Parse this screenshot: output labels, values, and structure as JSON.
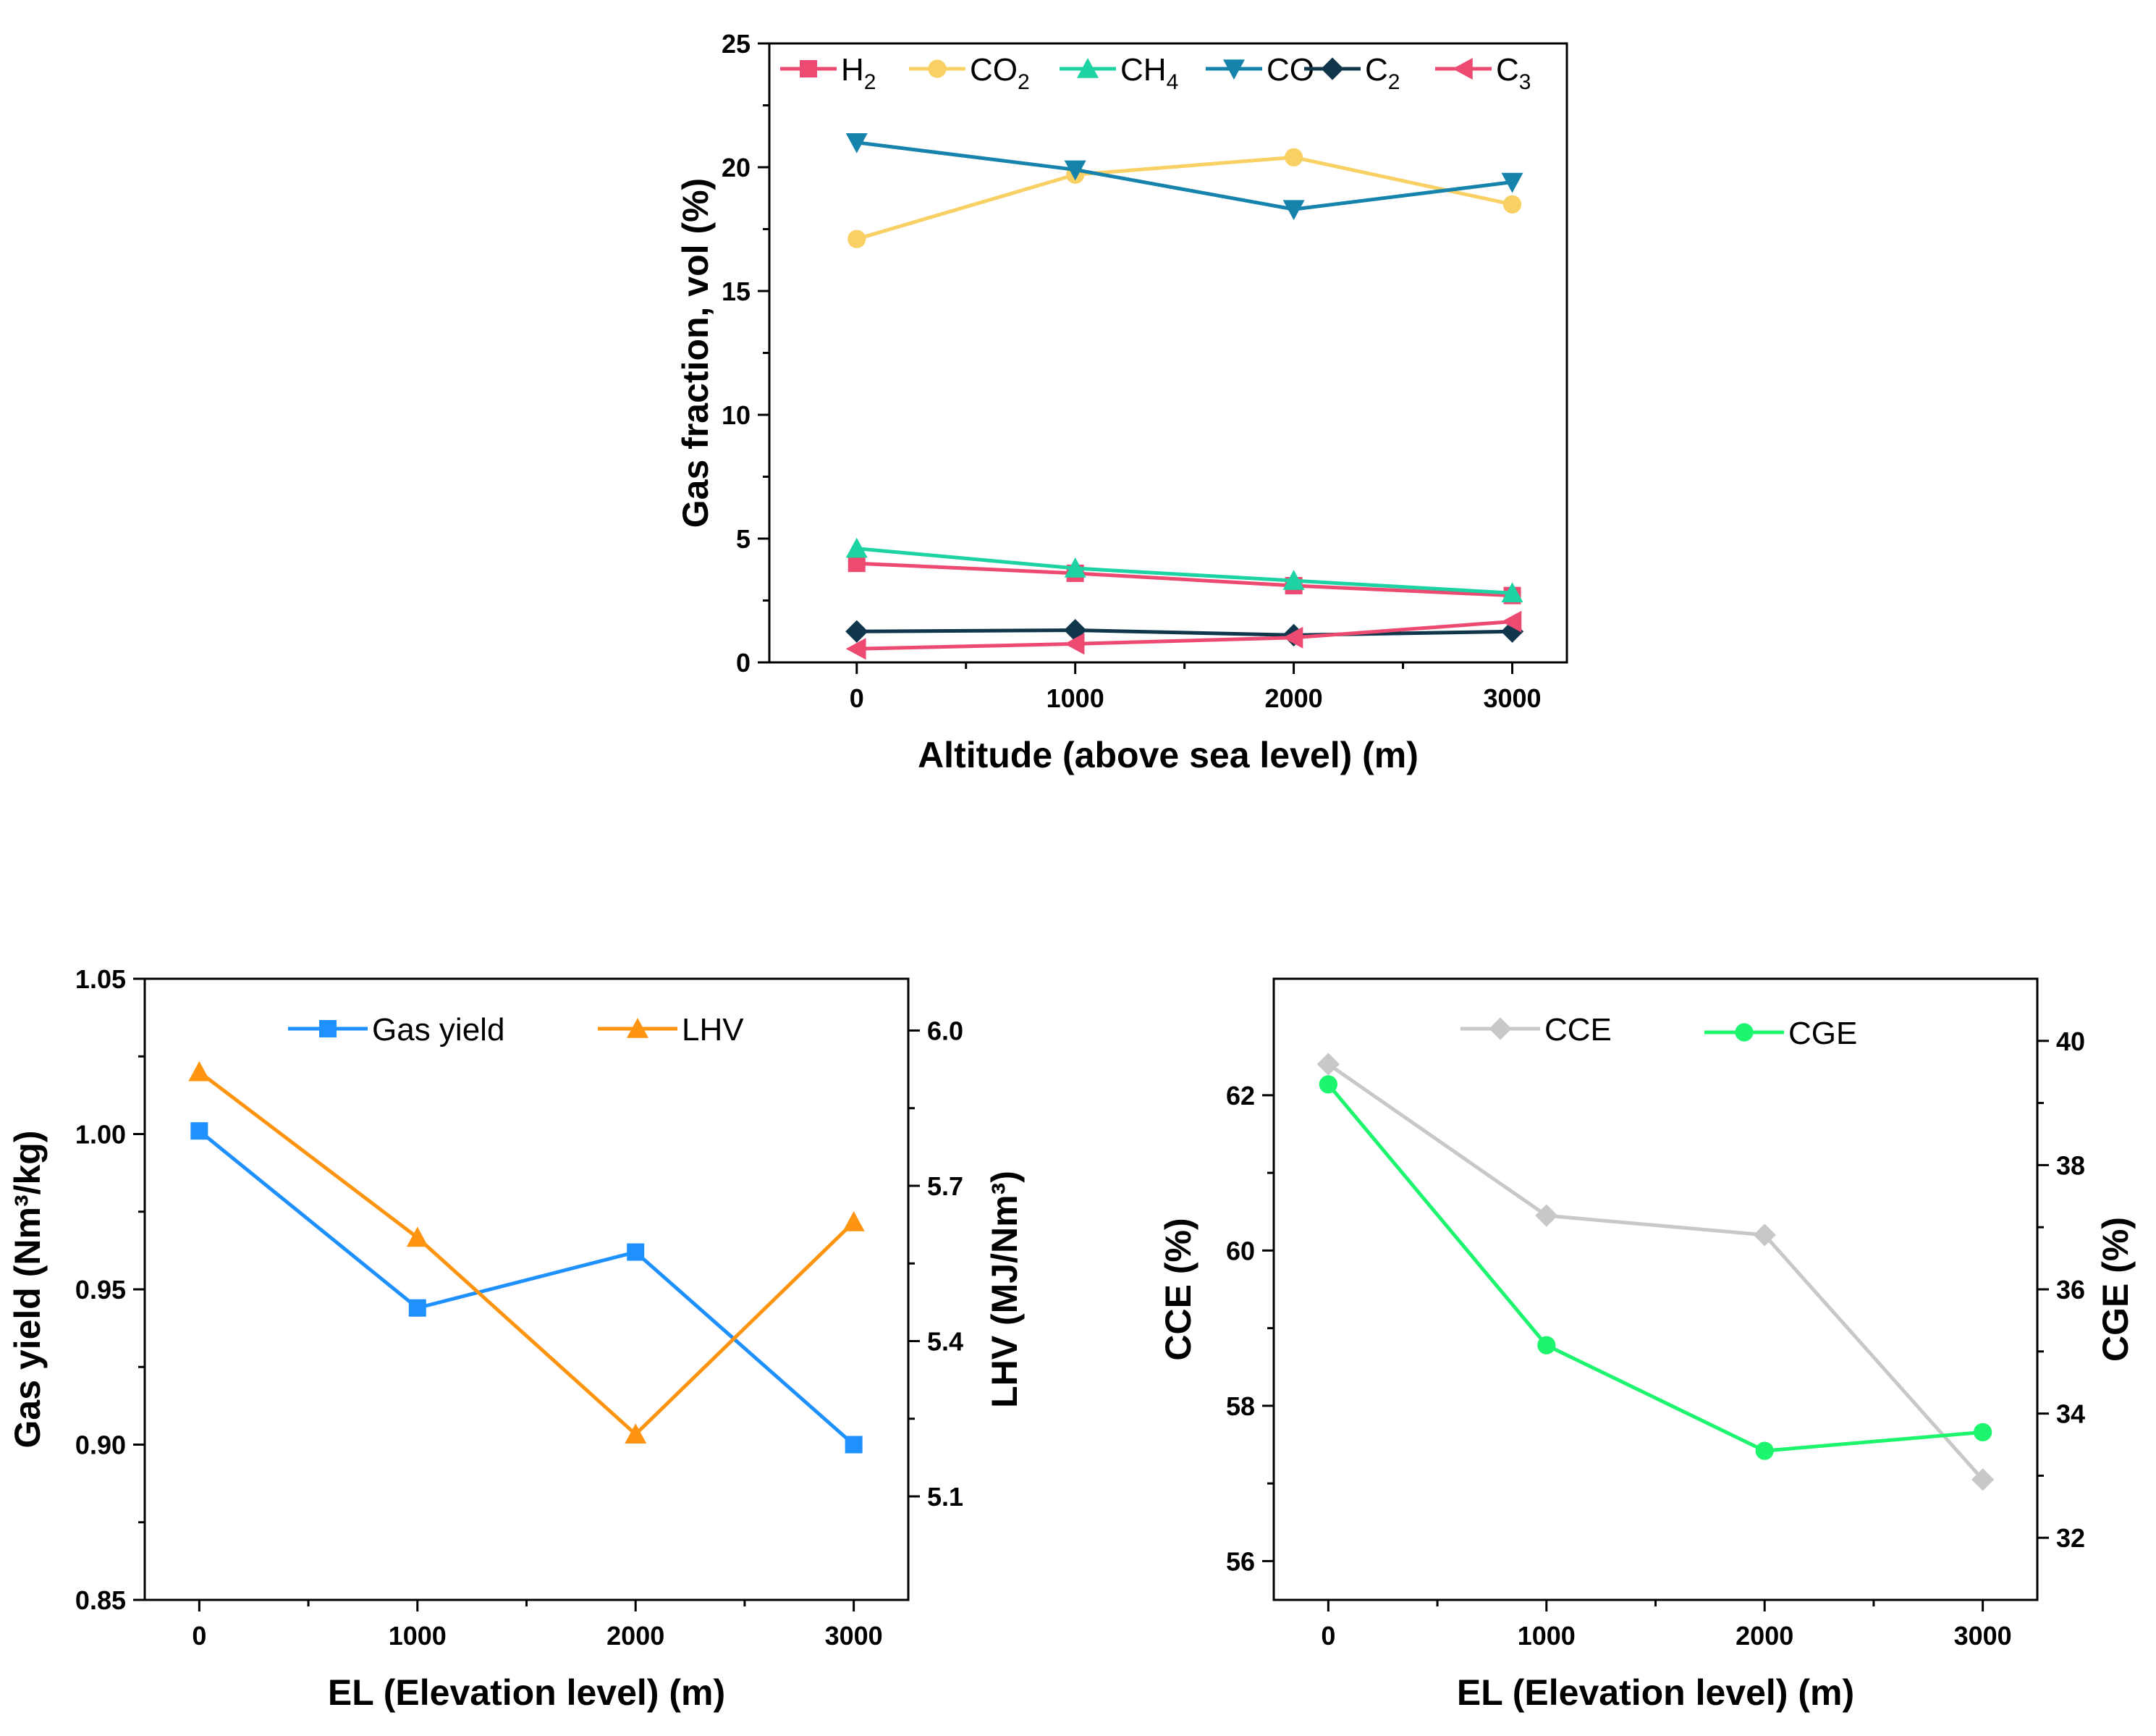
{
  "chart_data": [
    {
      "type": "line",
      "id": "gas-composition",
      "xlabel": "Altitude (above sea level) (m)",
      "ylabel": "Gas fraction,  vol (%)",
      "x": [
        0,
        1000,
        2000,
        3000
      ],
      "xlim": [
        -400,
        3250
      ],
      "ylim": [
        0,
        25
      ],
      "xticks": [
        "0",
        "1000",
        "2000",
        "3000"
      ],
      "yticks": [
        "0",
        "5",
        "10",
        "15",
        "20",
        "25"
      ],
      "legend_position": "top",
      "series": [
        {
          "name": "H",
          "sub": "2",
          "color": "#ec4a71",
          "marker": "square",
          "values": [
            4.0,
            3.6,
            3.1,
            2.7
          ]
        },
        {
          "name": "CO",
          "sub": "2",
          "color": "#f9d064",
          "marker": "circle",
          "values": [
            17.1,
            19.7,
            20.4,
            18.5
          ]
        },
        {
          "name": "CH",
          "sub": "4",
          "color": "#1ed3a3",
          "marker": "triangle-up",
          "values": [
            4.6,
            3.8,
            3.3,
            2.8
          ]
        },
        {
          "name": "CO",
          "sub": "",
          "color": "#1683ac",
          "marker": "triangle-down",
          "values": [
            21.0,
            19.9,
            18.3,
            19.4
          ]
        },
        {
          "name": "C",
          "sub": "2",
          "color": "#10364b",
          "marker": "diamond",
          "values": [
            1.25,
            1.3,
            1.1,
            1.25
          ]
        },
        {
          "name": "C",
          "sub": "3",
          "color": "#ec4a71",
          "marker": "triangle-left",
          "values": [
            0.55,
            0.75,
            1.0,
            1.65
          ]
        }
      ]
    },
    {
      "type": "line",
      "id": "gas-yield-lhv",
      "xlabel": "EL (Elevation level) (m)",
      "ylabel": "Gas yield (Nm³/kg)",
      "y2label": "LHV (MJ/Nm³)",
      "x": [
        0,
        1000,
        2000,
        3000
      ],
      "xlim": [
        -250,
        3250
      ],
      "ylim": [
        0.85,
        1.05
      ],
      "y2lim": [
        4.9,
        6.1
      ],
      "xticks": [
        "0",
        "1000",
        "2000",
        "3000"
      ],
      "yticks": [
        "0.85",
        "0.90",
        "0.95",
        "1.00",
        "1.05"
      ],
      "y2ticks": [
        "5.1",
        "5.4",
        "5.7",
        "6.0"
      ],
      "legend_position": "top",
      "series": [
        {
          "name": "Gas yield",
          "axis": "left",
          "color": "#1e90ff",
          "marker": "square",
          "values": [
            1.001,
            0.944,
            0.962,
            0.9
          ]
        },
        {
          "name": "LHV",
          "axis": "right",
          "color": "#ff9411",
          "marker": "triangle-up",
          "values": [
            5.92,
            5.6,
            5.22,
            5.63
          ]
        }
      ]
    },
    {
      "type": "line",
      "id": "cce-cge",
      "xlabel": "EL (Elevation level) (m)",
      "ylabel": "CCE (%)",
      "y2label": "CGE (%)",
      "x": [
        0,
        1000,
        2000,
        3000
      ],
      "xlim": [
        -250,
        3250
      ],
      "ylim": [
        55.5,
        63.5
      ],
      "y2lim": [
        31,
        41
      ],
      "xticks": [
        "0",
        "1000",
        "2000",
        "3000"
      ],
      "yticks": [
        "56",
        "58",
        "60",
        "62"
      ],
      "y2ticks": [
        "32",
        "34",
        "36",
        "38",
        "40"
      ],
      "legend_position": "top",
      "series": [
        {
          "name": "CCE",
          "axis": "left",
          "color": "#c8c8c8",
          "marker": "diamond",
          "values": [
            62.4,
            60.45,
            60.2,
            57.05
          ]
        },
        {
          "name": "CGE",
          "axis": "right",
          "color": "#1ef56e",
          "marker": "circle",
          "values": [
            39.3,
            35.1,
            33.4,
            33.7
          ]
        }
      ]
    }
  ]
}
